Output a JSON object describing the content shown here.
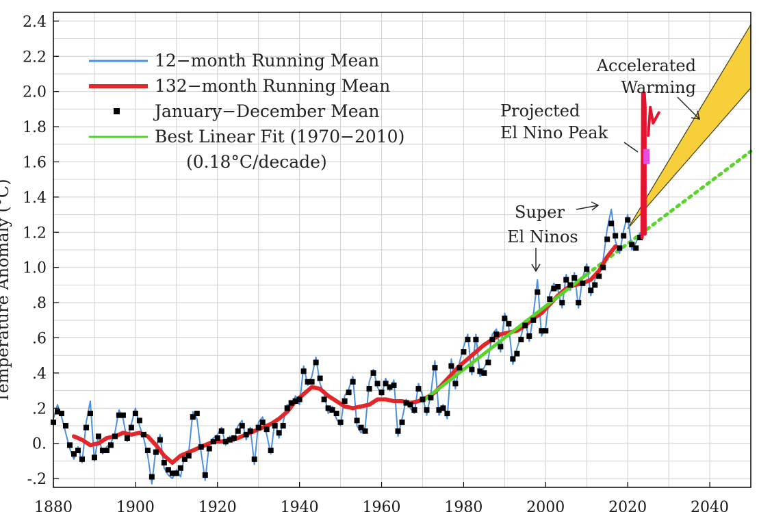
{
  "chart_data": {
    "type": "line",
    "title": "",
    "xlabel": "",
    "ylabel": "Temperature Anomaly (°C)",
    "xlim": [
      1880,
      2050
    ],
    "ylim": [
      -0.25,
      2.45
    ],
    "grid": true,
    "legend_position": "top-left",
    "x_ticks": [
      "1880",
      "1900",
      "1920",
      "1940",
      "1960",
      "1980",
      "2000",
      "2020",
      "2040"
    ],
    "y_ticks": [
      {
        "v": 2.4,
        "label": "2.4"
      },
      {
        "v": 2.2,
        "label": "2.2"
      },
      {
        "v": 2.0,
        "label": "2.0"
      },
      {
        "v": 1.8,
        "label": "1.8"
      },
      {
        "v": 1.6,
        "label": "1.6"
      },
      {
        "v": 1.4,
        "label": "1.4"
      },
      {
        "v": 1.2,
        "label": "1.2"
      },
      {
        "v": 1.0,
        "label": "1.0"
      },
      {
        "v": 0.8,
        "label": ".8"
      },
      {
        "v": 0.6,
        "label": ".6"
      },
      {
        "v": 0.4,
        "label": ".4"
      },
      {
        "v": 0.2,
        "label": ".2"
      },
      {
        "v": 0.0,
        "label": "0."
      },
      {
        "v": -0.2,
        "label": "-.2"
      }
    ],
    "legend": [
      {
        "label": "12−month Running Mean",
        "color": "#4a8fe0",
        "style": "line"
      },
      {
        "label": "132−month Running Mean",
        "color": "#e0282a",
        "style": "thick-line"
      },
      {
        "label": "January−December Mean",
        "color": "#000000",
        "style": "square"
      },
      {
        "label": "Best Linear Fit (1970−2010)",
        "color": "#4fd02a",
        "style": "line"
      }
    ],
    "legend_note": "(0.18°C/decade)",
    "annual_mean": {
      "x": [
        1880,
        1881,
        1882,
        1883,
        1884,
        1885,
        1886,
        1887,
        1888,
        1889,
        1890,
        1891,
        1892,
        1893,
        1894,
        1895,
        1896,
        1897,
        1898,
        1899,
        1900,
        1901,
        1902,
        1903,
        1904,
        1905,
        1906,
        1907,
        1908,
        1909,
        1910,
        1911,
        1912,
        1913,
        1914,
        1915,
        1916,
        1917,
        1918,
        1919,
        1920,
        1921,
        1922,
        1923,
        1924,
        1925,
        1926,
        1927,
        1928,
        1929,
        1930,
        1931,
        1932,
        1933,
        1934,
        1935,
        1936,
        1937,
        1938,
        1939,
        1940,
        1941,
        1942,
        1943,
        1944,
        1945,
        1946,
        1947,
        1948,
        1949,
        1950,
        1951,
        1952,
        1953,
        1954,
        1955,
        1956,
        1957,
        1958,
        1959,
        1960,
        1961,
        1962,
        1963,
        1964,
        1965,
        1966,
        1967,
        1968,
        1969,
        1970,
        1971,
        1972,
        1973,
        1974,
        1975,
        1976,
        1977,
        1978,
        1979,
        1980,
        1981,
        1982,
        1983,
        1984,
        1985,
        1986,
        1987,
        1988,
        1989,
        1990,
        1991,
        1992,
        1993,
        1994,
        1995,
        1996,
        1997,
        1998,
        1999,
        2000,
        2001,
        2002,
        2003,
        2004,
        2005,
        2006,
        2007,
        2008,
        2009,
        2010,
        2011,
        2012,
        2013,
        2014,
        2015,
        2016,
        2017,
        2018,
        2019,
        2020,
        2021,
        2022,
        2023
      ],
      "y": [
        0.12,
        0.18,
        0.17,
        0.1,
        -0.01,
        -0.06,
        -0.04,
        -0.09,
        0.09,
        0.17,
        -0.08,
        0.04,
        -0.04,
        -0.04,
        -0.01,
        0.04,
        0.16,
        0.16,
        0.03,
        0.09,
        0.17,
        0.13,
        0.05,
        -0.04,
        -0.19,
        -0.05,
        0.02,
        -0.11,
        -0.15,
        -0.17,
        -0.17,
        -0.14,
        -0.09,
        -0.07,
        0.15,
        0.17,
        -0.02,
        -0.18,
        -0.03,
        0.01,
        0.03,
        0.07,
        0.01,
        0.02,
        0.03,
        0.07,
        0.1,
        0.05,
        0.07,
        -0.09,
        0.09,
        0.12,
        0.08,
        -0.04,
        0.1,
        0.06,
        0.1,
        0.2,
        0.23,
        0.24,
        0.25,
        0.41,
        0.35,
        0.35,
        0.46,
        0.37,
        0.25,
        0.2,
        0.19,
        0.17,
        0.12,
        0.24,
        0.29,
        0.35,
        0.13,
        0.09,
        0.07,
        0.31,
        0.4,
        0.34,
        0.29,
        0.34,
        0.32,
        0.33,
        0.07,
        0.12,
        0.23,
        0.22,
        0.19,
        0.31,
        0.25,
        0.19,
        0.26,
        0.43,
        0.19,
        0.2,
        0.17,
        0.44,
        0.34,
        0.43,
        0.52,
        0.59,
        0.42,
        0.59,
        0.41,
        0.4,
        0.46,
        0.59,
        0.62,
        0.55,
        0.71,
        0.68,
        0.48,
        0.51,
        0.59,
        0.67,
        0.61,
        0.7,
        0.86,
        0.64,
        0.64,
        0.82,
        0.88,
        0.89,
        0.8,
        0.93,
        0.9,
        0.94,
        0.8,
        0.91,
        0.99,
        0.87,
        0.9,
        0.95,
        1.0,
        1.16,
        1.25,
        1.18,
        1.11,
        1.18,
        1.27,
        1.13,
        1.11,
        1.17
      ]
    },
    "running_mean_12mo": {
      "x": [
        1880,
        1881,
        1882,
        1883,
        1884,
        1885,
        1886,
        1887,
        1888,
        1889,
        1890,
        1891,
        1892,
        1893,
        1894,
        1895,
        1896,
        1897,
        1898,
        1899,
        1900,
        1901,
        1902,
        1903,
        1904,
        1905,
        1906,
        1907,
        1908,
        1909,
        1910,
        1911,
        1912,
        1913,
        1914,
        1915,
        1916,
        1917,
        1918,
        1919,
        1920,
        1921,
        1922,
        1923,
        1924,
        1925,
        1926,
        1927,
        1928,
        1929,
        1930,
        1931,
        1932,
        1933,
        1934,
        1935,
        1936,
        1937,
        1938,
        1939,
        1940,
        1941,
        1942,
        1943,
        1944,
        1945,
        1946,
        1947,
        1948,
        1949,
        1950,
        1951,
        1952,
        1953,
        1954,
        1955,
        1956,
        1957,
        1958,
        1959,
        1960,
        1961,
        1962,
        1963,
        1964,
        1965,
        1966,
        1967,
        1968,
        1969,
        1970,
        1971,
        1972,
        1973,
        1974,
        1975,
        1976,
        1977,
        1978,
        1979,
        1980,
        1981,
        1982,
        1983,
        1984,
        1985,
        1986,
        1987,
        1988,
        1989,
        1990,
        1991,
        1992,
        1993,
        1994,
        1995,
        1996,
        1997,
        1998,
        1999,
        2000,
        2001,
        2002,
        2003,
        2004,
        2005,
        2006,
        2007,
        2008,
        2009,
        2010,
        2011,
        2012,
        2013,
        2014,
        2015,
        2016,
        2017,
        2018,
        2019,
        2020,
        2021,
        2022,
        2023
      ],
      "y": [
        0.14,
        0.22,
        0.15,
        0.06,
        -0.03,
        -0.09,
        -0.02,
        -0.11,
        0.12,
        0.24,
        -0.1,
        0.05,
        -0.06,
        -0.02,
        0.0,
        0.06,
        0.19,
        0.14,
        0.01,
        0.11,
        0.2,
        0.1,
        0.03,
        -0.07,
        -0.23,
        -0.03,
        0.05,
        -0.14,
        -0.18,
        -0.2,
        -0.15,
        -0.19,
        -0.07,
        -0.05,
        0.18,
        0.14,
        -0.05,
        -0.21,
        0.0,
        0.03,
        0.05,
        0.09,
        -0.01,
        0.04,
        0.01,
        0.1,
        0.13,
        0.02,
        0.09,
        -0.12,
        0.12,
        0.15,
        0.05,
        -0.06,
        0.13,
        0.03,
        0.12,
        0.22,
        0.2,
        0.27,
        0.22,
        0.44,
        0.33,
        0.38,
        0.49,
        0.34,
        0.28,
        0.17,
        0.21,
        0.14,
        0.1,
        0.27,
        0.31,
        0.38,
        0.1,
        0.06,
        0.09,
        0.35,
        0.42,
        0.32,
        0.27,
        0.37,
        0.3,
        0.36,
        0.04,
        0.14,
        0.25,
        0.2,
        0.17,
        0.34,
        0.27,
        0.16,
        0.28,
        0.47,
        0.16,
        0.22,
        0.14,
        0.48,
        0.31,
        0.46,
        0.55,
        0.62,
        0.39,
        0.62,
        0.38,
        0.43,
        0.48,
        0.62,
        0.65,
        0.52,
        0.74,
        0.66,
        0.45,
        0.54,
        0.61,
        0.7,
        0.58,
        0.73,
        0.93,
        0.61,
        0.66,
        0.85,
        0.91,
        0.87,
        0.77,
        0.96,
        0.87,
        0.97,
        0.77,
        0.94,
        1.02,
        0.84,
        0.93,
        0.98,
        1.04,
        1.22,
        1.33,
        1.15,
        1.08,
        1.21,
        1.3,
        1.1,
        1.14,
        1.2
      ]
    },
    "running_mean_132mo": {
      "x": [
        1885,
        1887,
        1889,
        1891,
        1893,
        1895,
        1897,
        1899,
        1901,
        1903,
        1905,
        1907,
        1909,
        1911,
        1913,
        1915,
        1917,
        1919,
        1921,
        1923,
        1925,
        1927,
        1929,
        1931,
        1933,
        1935,
        1937,
        1939,
        1941,
        1943,
        1945,
        1947,
        1949,
        1951,
        1953,
        1955,
        1957,
        1959,
        1961,
        1963,
        1965,
        1967,
        1969,
        1971,
        1973,
        1975,
        1977,
        1979,
        1981,
        1983,
        1985,
        1987,
        1989,
        1991,
        1993,
        1995,
        1997,
        1999,
        2001,
        2003,
        2005,
        2007,
        2009,
        2011,
        2013,
        2015,
        2017
      ],
      "y": [
        0.04,
        0.02,
        -0.01,
        0.0,
        0.03,
        0.04,
        0.06,
        0.05,
        0.06,
        0.04,
        -0.01,
        -0.07,
        -0.11,
        -0.07,
        -0.05,
        -0.03,
        -0.01,
        0.01,
        0.01,
        0.02,
        0.03,
        0.05,
        0.07,
        0.09,
        0.11,
        0.14,
        0.18,
        0.24,
        0.28,
        0.32,
        0.31,
        0.27,
        0.24,
        0.21,
        0.2,
        0.21,
        0.22,
        0.25,
        0.25,
        0.24,
        0.24,
        0.23,
        0.24,
        0.26,
        0.29,
        0.34,
        0.39,
        0.44,
        0.48,
        0.52,
        0.56,
        0.59,
        0.62,
        0.63,
        0.64,
        0.67,
        0.71,
        0.74,
        0.79,
        0.84,
        0.88,
        0.9,
        0.91,
        0.93,
        0.98,
        1.06,
        1.12
      ]
    },
    "linear_fit": {
      "x": [
        1970,
        2010
      ],
      "y": [
        0.24,
        0.96
      ],
      "rate_label": "(0.18°C/decade)"
    },
    "fit_extrapolation": {
      "x": [
        2010,
        2050
      ],
      "y": [
        0.96,
        1.66
      ]
    },
    "accelerated_warming_band": {
      "x": [
        2020,
        2050
      ],
      "lower": [
        1.22,
        2.02
      ],
      "upper": [
        1.22,
        2.38
      ]
    },
    "projected_el_nino_peak": {
      "x": 2024.5,
      "y": 1.63
    },
    "hand_drawn_spike": {
      "x": [
        2023.5,
        2023.7,
        2024.0,
        2024.2,
        2024.2
      ],
      "y": [
        1.17,
        1.99,
        1.99,
        1.91,
        1.19
      ]
    },
    "annotations": [
      {
        "lines": [
          "Accelerated",
          "Warming"
        ]
      },
      {
        "lines": [
          "Projected",
          "El Nino Peak"
        ]
      },
      {
        "lines": [
          "Super",
          "El Ninos"
        ]
      }
    ],
    "colors": {
      "running_12": "#4a8fe0",
      "running_132": "#e0282a",
      "fit": "#5ad32a",
      "fit_dotted": "#5ad32a",
      "band_fill": "#f6cf3a",
      "band_edge": "#3a3a1a",
      "spike": "#e3142f",
      "peak_marker": "#e64ee0",
      "grid": "#cfcfcf"
    }
  }
}
